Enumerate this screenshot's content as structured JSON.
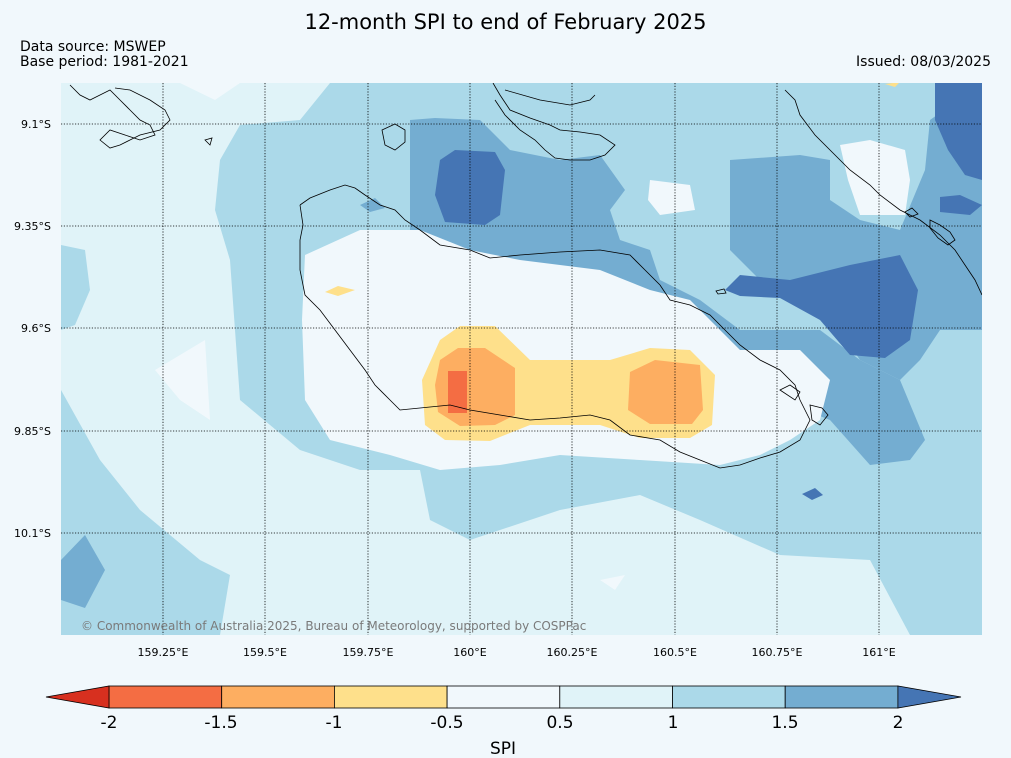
{
  "map": {
    "title": "12-month SPI to end of February 2025",
    "source": "Data source: MSWEP",
    "base_period": "Base period: 1981-2021",
    "issued": "Issued: 08/03/2025",
    "copyright": "© Commonwealth of Australia 2025, Bureau of Meteorology, supported by COSPPac",
    "lat_labels": [
      "9.1°S",
      "9.35°S",
      "9.6°S",
      "9.85°S",
      "10.1°S"
    ],
    "lon_labels": [
      "159.25°E",
      "159.5°E",
      "159.75°E",
      "160°E",
      "160.25°E",
      "160.5°E",
      "160.75°E",
      "161°E"
    ]
  },
  "colorbar": {
    "label": "SPI",
    "ticks": [
      "-2",
      "-1.5",
      "-1",
      "-0.5",
      "0.5",
      "1",
      "1.5",
      "2"
    ],
    "colors": {
      "below_-2": "#d7301f",
      "-2_-1.5": "#f46d43",
      "-1.5_-1": "#fdae61",
      "-1_-0.5": "#fee08b",
      "-0.5_0.5": "#f1f8fc",
      "0.5_1": "#e0f3f8",
      "1_1.5": "#abd9e9",
      "1.5_2": "#74add1",
      "above_2": "#4575b4"
    }
  }
}
